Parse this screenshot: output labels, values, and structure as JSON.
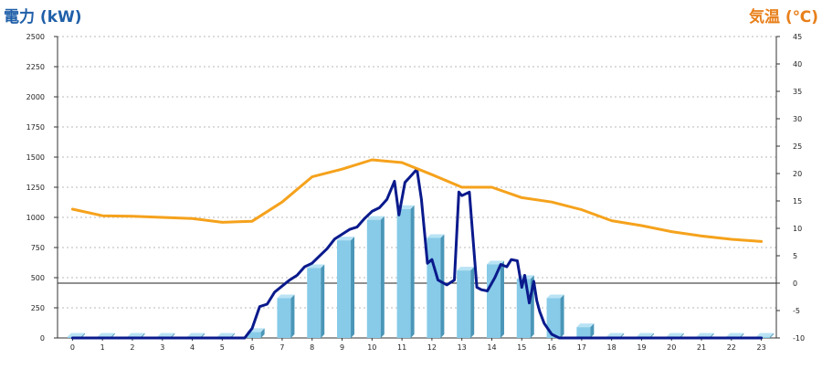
{
  "chart_data": {
    "type": "bar",
    "ylabel": "電力 (kW)",
    "y2label": "気温 (℃)",
    "ylim": [
      0,
      2500
    ],
    "y2lim": [
      -10,
      45
    ],
    "y_ticks": [
      0,
      250,
      500,
      750,
      1000,
      1250,
      1500,
      1750,
      2000,
      2250,
      2500
    ],
    "y2_ticks": [
      -10,
      -5,
      0,
      5,
      10,
      15,
      20,
      25,
      30,
      35,
      40,
      45
    ],
    "categories": [
      "0",
      "1",
      "2",
      "3",
      "4",
      "5",
      "6",
      "7",
      "8",
      "9",
      "10",
      "11",
      "12",
      "13",
      "14",
      "15",
      "16",
      "17",
      "18",
      "19",
      "20",
      "21",
      "22",
      "23"
    ],
    "grid": true,
    "colors": {
      "bars": "#87cbe8",
      "bar_side": "#4a96b8",
      "bar_top": "#b9e3f4",
      "power_line": "#0a1a8c",
      "temp_line": "#f5a21c",
      "left_axis_title": "#1f5fa8",
      "right_axis_title": "#e87f1a"
    },
    "series": [
      {
        "type": "bar",
        "axis": "left",
        "values": [
          10,
          10,
          10,
          10,
          10,
          10,
          50,
          330,
          580,
          810,
          980,
          1070,
          830,
          560,
          610,
          490,
          330,
          90,
          10,
          10,
          10,
          10,
          10,
          10
        ]
      },
      {
        "type": "line",
        "axis": "left",
        "x": [
          0,
          1,
          2,
          3,
          4,
          5,
          5.75,
          6,
          6.25,
          6.5,
          6.75,
          7,
          7.25,
          7.5,
          7.75,
          8,
          8.25,
          8.5,
          8.75,
          9,
          9.25,
          9.5,
          9.75,
          10,
          10.25,
          10.5,
          10.75,
          10.9,
          11.1,
          11.25,
          11.5,
          11.65,
          11.85,
          12,
          12.2,
          12.5,
          12.75,
          12.9,
          13,
          13.25,
          13.5,
          13.65,
          13.85,
          14.1,
          14.3,
          14.5,
          14.65,
          14.85,
          15,
          15.1,
          15.25,
          15.4,
          15.5,
          15.6,
          15.75,
          16,
          16.25,
          16.5,
          16.75,
          17,
          17.25,
          18,
          19,
          20,
          21,
          22,
          23
        ],
        "values": [
          0,
          0,
          0,
          0,
          0,
          0,
          0,
          80,
          260,
          280,
          380,
          430,
          480,
          520,
          590,
          620,
          680,
          740,
          820,
          860,
          900,
          920,
          990,
          1050,
          1080,
          1150,
          1300,
          1020,
          1290,
          1330,
          1400,
          1150,
          620,
          650,
          480,
          440,
          480,
          1210,
          1180,
          1210,
          420,
          400,
          390,
          500,
          610,
          590,
          650,
          640,
          420,
          520,
          290,
          470,
          310,
          220,
          120,
          30,
          0,
          0,
          0,
          0,
          0,
          0,
          0,
          0,
          0,
          0,
          0
        ]
      },
      {
        "type": "line",
        "axis": "right",
        "x": [
          0,
          1,
          2,
          3,
          4,
          5,
          6,
          7,
          8,
          9,
          10,
          11,
          12,
          13,
          14,
          15,
          16,
          17,
          18,
          19,
          20,
          21,
          22,
          23
        ],
        "values": [
          13.5,
          12.3,
          12.2,
          12.0,
          11.8,
          11.1,
          11.3,
          14.8,
          19.4,
          20.8,
          22.5,
          22.0,
          19.8,
          17.5,
          17.5,
          15.6,
          14.8,
          13.4,
          11.4,
          10.5,
          9.4,
          8.6,
          8.0,
          7.6
        ]
      }
    ]
  }
}
